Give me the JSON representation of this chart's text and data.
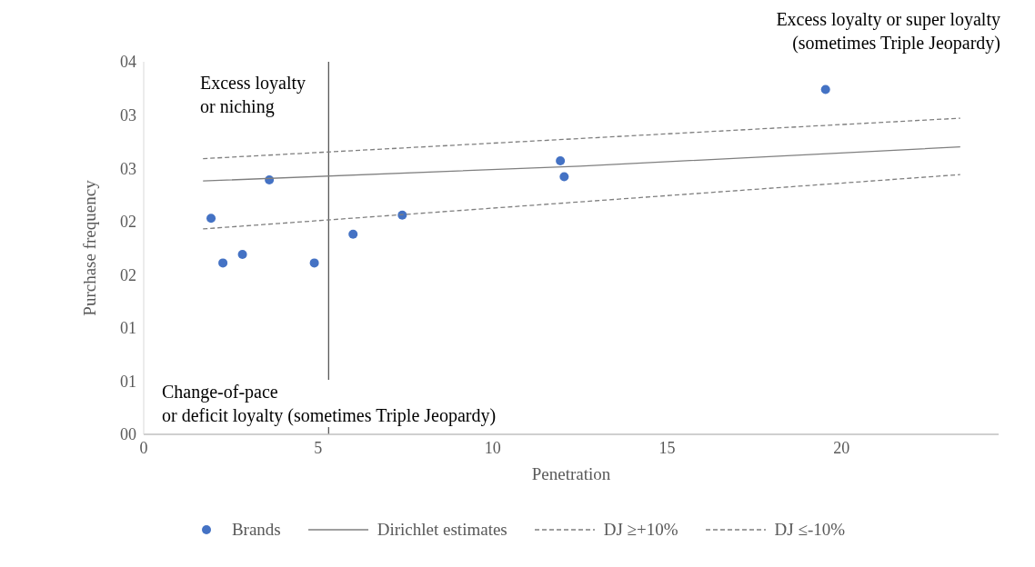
{
  "chart_data": {
    "type": "scatter",
    "xlabel": "Penetration",
    "ylabel": "Purchase frequency",
    "xlim": [
      0,
      24.5
    ],
    "xticks": [
      0,
      5,
      10,
      15,
      20
    ],
    "ylim": [
      0,
      3.5
    ],
    "yticks": [
      {
        "value": 0,
        "label": "00"
      },
      {
        "value": 0.5,
        "label": "01"
      },
      {
        "value": 1,
        "label": "01"
      },
      {
        "value": 1.5,
        "label": "02"
      },
      {
        "value": 2,
        "label": "02"
      },
      {
        "value": 2.5,
        "label": "03"
      },
      {
        "value": 3,
        "label": "03"
      },
      {
        "value": 3.5,
        "label": "04"
      }
    ],
    "grid": false,
    "legend": "bottom",
    "series": [
      {
        "name": "Brands",
        "marker": "circle",
        "color": "#4472c4",
        "x": [
          1.93,
          2.27,
          2.83,
          3.6,
          4.89,
          6.0,
          7.41,
          11.94,
          12.05,
          19.54
        ],
        "values": [
          2.03,
          1.61,
          1.69,
          2.39,
          1.61,
          1.88,
          2.06,
          2.57,
          2.42,
          3.24
        ]
      },
      {
        "name": "Dirichlet estimates",
        "type": "line",
        "color": "#7f7f7f",
        "line_style": "solid",
        "x": [
          1.7,
          12.5,
          23.4
        ],
        "values": [
          2.38,
          2.52,
          2.7
        ]
      },
      {
        "name": "DJ ≥+10%",
        "type": "line",
        "color": "#7f7f7f",
        "line_style": "dashed",
        "x": [
          1.7,
          23.4
        ],
        "values": [
          2.59,
          2.97
        ]
      },
      {
        "name": "DJ ≤-10%",
        "type": "line",
        "color": "#7f7f7f",
        "line_style": "dashed",
        "x": [
          1.7,
          23.4
        ],
        "values": [
          1.93,
          2.44
        ]
      }
    ],
    "ref_lines": [
      {
        "axis": "x",
        "value": 5.3,
        "color": "#595959"
      }
    ],
    "annotations": [
      "Excess loyalty or super loyalty\n(sometimes Triple Jeopardy)",
      "Excess loyalty\nor niching",
      "Change-of-pace\nor deficit loyalty (sometimes Triple Jeopardy)"
    ]
  }
}
